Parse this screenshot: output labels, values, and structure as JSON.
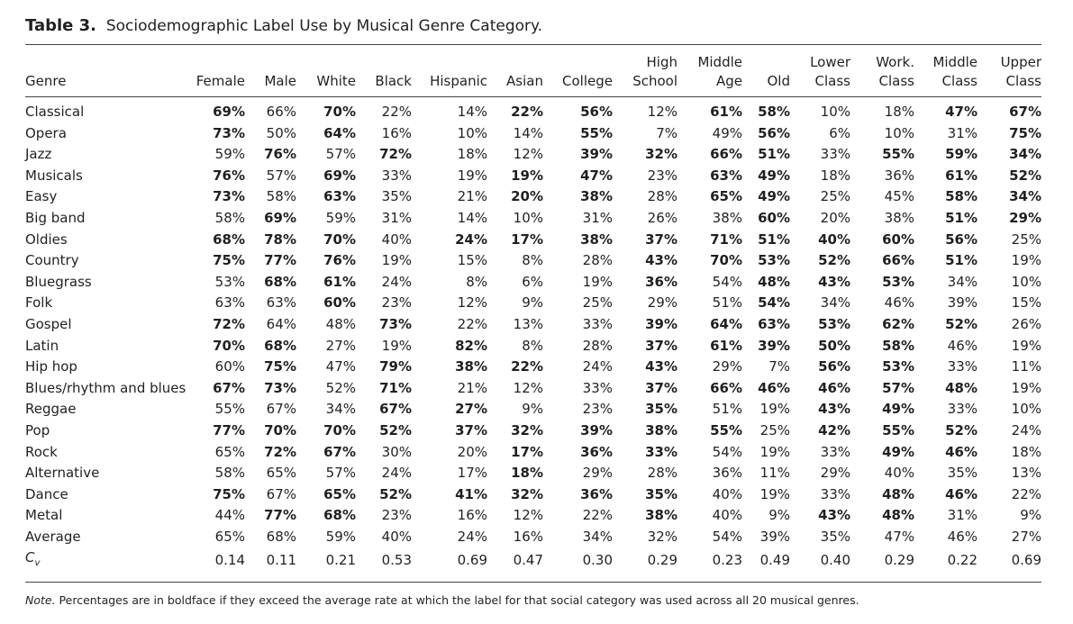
{
  "caption": {
    "label": "Table 3.",
    "title": "Sociodemographic Label Use by Musical Genre Category."
  },
  "columns": [
    {
      "line1": "",
      "line2": "Genre"
    },
    {
      "line1": "",
      "line2": "Female"
    },
    {
      "line1": "",
      "line2": "Male"
    },
    {
      "line1": "",
      "line2": "White"
    },
    {
      "line1": "",
      "line2": "Black"
    },
    {
      "line1": "",
      "line2": "Hispanic"
    },
    {
      "line1": "",
      "line2": "Asian"
    },
    {
      "line1": "",
      "line2": "College"
    },
    {
      "line1": "High",
      "line2": "School"
    },
    {
      "line1": "Middle",
      "line2": "Age"
    },
    {
      "line1": "",
      "line2": "Old"
    },
    {
      "line1": "Lower",
      "line2": "Class"
    },
    {
      "line1": "Work.",
      "line2": "Class"
    },
    {
      "line1": "Middle",
      "line2": "Class"
    },
    {
      "line1": "Upper",
      "line2": "Class"
    }
  ],
  "rows": [
    {
      "genre": "Classical",
      "values": [
        "69%",
        "66%",
        "70%",
        "22%",
        "14%",
        "22%",
        "56%",
        "12%",
        "61%",
        "58%",
        "10%",
        "18%",
        "47%",
        "67%"
      ],
      "bold": [
        1,
        0,
        1,
        0,
        0,
        1,
        1,
        0,
        1,
        1,
        0,
        0,
        1,
        1
      ]
    },
    {
      "genre": "Opera",
      "values": [
        "73%",
        "50%",
        "64%",
        "16%",
        "10%",
        "14%",
        "55%",
        "7%",
        "49%",
        "56%",
        "6%",
        "10%",
        "31%",
        "75%"
      ],
      "bold": [
        1,
        0,
        1,
        0,
        0,
        0,
        1,
        0,
        0,
        1,
        0,
        0,
        0,
        1
      ]
    },
    {
      "genre": "Jazz",
      "values": [
        "59%",
        "76%",
        "57%",
        "72%",
        "18%",
        "12%",
        "39%",
        "32%",
        "66%",
        "51%",
        "33%",
        "55%",
        "59%",
        "34%"
      ],
      "bold": [
        0,
        1,
        0,
        1,
        0,
        0,
        1,
        1,
        1,
        1,
        0,
        1,
        1,
        1
      ]
    },
    {
      "genre": "Musicals",
      "values": [
        "76%",
        "57%",
        "69%",
        "33%",
        "19%",
        "19%",
        "47%",
        "23%",
        "63%",
        "49%",
        "18%",
        "36%",
        "61%",
        "52%"
      ],
      "bold": [
        1,
        0,
        1,
        0,
        0,
        1,
        1,
        0,
        1,
        1,
        0,
        0,
        1,
        1
      ]
    },
    {
      "genre": "Easy",
      "values": [
        "73%",
        "58%",
        "63%",
        "35%",
        "21%",
        "20%",
        "38%",
        "28%",
        "65%",
        "49%",
        "25%",
        "45%",
        "58%",
        "34%"
      ],
      "bold": [
        1,
        0,
        1,
        0,
        0,
        1,
        1,
        0,
        1,
        1,
        0,
        0,
        1,
        1
      ]
    },
    {
      "genre": "Big band",
      "values": [
        "58%",
        "69%",
        "59%",
        "31%",
        "14%",
        "10%",
        "31%",
        "26%",
        "38%",
        "60%",
        "20%",
        "38%",
        "51%",
        "29%"
      ],
      "bold": [
        0,
        1,
        0,
        0,
        0,
        0,
        0,
        0,
        0,
        1,
        0,
        0,
        1,
        1
      ]
    },
    {
      "genre": "Oldies",
      "values": [
        "68%",
        "78%",
        "70%",
        "40%",
        "24%",
        "17%",
        "38%",
        "37%",
        "71%",
        "51%",
        "40%",
        "60%",
        "56%",
        "25%"
      ],
      "bold": [
        1,
        1,
        1,
        0,
        1,
        1,
        1,
        1,
        1,
        1,
        1,
        1,
        1,
        0
      ]
    },
    {
      "genre": "Country",
      "values": [
        "75%",
        "77%",
        "76%",
        "19%",
        "15%",
        "8%",
        "28%",
        "43%",
        "70%",
        "53%",
        "52%",
        "66%",
        "51%",
        "19%"
      ],
      "bold": [
        1,
        1,
        1,
        0,
        0,
        0,
        0,
        1,
        1,
        1,
        1,
        1,
        1,
        0
      ]
    },
    {
      "genre": "Bluegrass",
      "values": [
        "53%",
        "68%",
        "61%",
        "24%",
        "8%",
        "6%",
        "19%",
        "36%",
        "54%",
        "48%",
        "43%",
        "53%",
        "34%",
        "10%"
      ],
      "bold": [
        0,
        1,
        1,
        0,
        0,
        0,
        0,
        1,
        0,
        1,
        1,
        1,
        0,
        0
      ]
    },
    {
      "genre": "Folk",
      "values": [
        "63%",
        "63%",
        "60%",
        "23%",
        "12%",
        "9%",
        "25%",
        "29%",
        "51%",
        "54%",
        "34%",
        "46%",
        "39%",
        "15%"
      ],
      "bold": [
        0,
        0,
        1,
        0,
        0,
        0,
        0,
        0,
        0,
        1,
        0,
        0,
        0,
        0
      ]
    },
    {
      "genre": "Gospel",
      "values": [
        "72%",
        "64%",
        "48%",
        "73%",
        "22%",
        "13%",
        "33%",
        "39%",
        "64%",
        "63%",
        "53%",
        "62%",
        "52%",
        "26%"
      ],
      "bold": [
        1,
        0,
        0,
        1,
        0,
        0,
        0,
        1,
        1,
        1,
        1,
        1,
        1,
        0
      ]
    },
    {
      "genre": "Latin",
      "values": [
        "70%",
        "68%",
        "27%",
        "19%",
        "82%",
        "8%",
        "28%",
        "37%",
        "61%",
        "39%",
        "50%",
        "58%",
        "46%",
        "19%"
      ],
      "bold": [
        1,
        1,
        0,
        0,
        1,
        0,
        0,
        1,
        1,
        1,
        1,
        1,
        0,
        0
      ]
    },
    {
      "genre": "Hip hop",
      "values": [
        "60%",
        "75%",
        "47%",
        "79%",
        "38%",
        "22%",
        "24%",
        "43%",
        "29%",
        "7%",
        "56%",
        "53%",
        "33%",
        "11%"
      ],
      "bold": [
        0,
        1,
        0,
        1,
        1,
        1,
        0,
        1,
        0,
        0,
        1,
        1,
        0,
        0
      ]
    },
    {
      "genre": "Blues/rhythm and blues",
      "values": [
        "67%",
        "73%",
        "52%",
        "71%",
        "21%",
        "12%",
        "33%",
        "37%",
        "66%",
        "46%",
        "46%",
        "57%",
        "48%",
        "19%"
      ],
      "bold": [
        1,
        1,
        0,
        1,
        0,
        0,
        0,
        1,
        1,
        1,
        1,
        1,
        1,
        0
      ]
    },
    {
      "genre": "Reggae",
      "values": [
        "55%",
        "67%",
        "34%",
        "67%",
        "27%",
        "9%",
        "23%",
        "35%",
        "51%",
        "19%",
        "43%",
        "49%",
        "33%",
        "10%"
      ],
      "bold": [
        0,
        0,
        0,
        1,
        1,
        0,
        0,
        1,
        0,
        0,
        1,
        1,
        0,
        0
      ]
    },
    {
      "genre": "Pop",
      "values": [
        "77%",
        "70%",
        "70%",
        "52%",
        "37%",
        "32%",
        "39%",
        "38%",
        "55%",
        "25%",
        "42%",
        "55%",
        "52%",
        "24%"
      ],
      "bold": [
        1,
        1,
        1,
        1,
        1,
        1,
        1,
        1,
        1,
        0,
        1,
        1,
        1,
        0
      ]
    },
    {
      "genre": "Rock",
      "values": [
        "65%",
        "72%",
        "67%",
        "30%",
        "20%",
        "17%",
        "36%",
        "33%",
        "54%",
        "19%",
        "33%",
        "49%",
        "46%",
        "18%"
      ],
      "bold": [
        0,
        1,
        1,
        0,
        0,
        1,
        1,
        1,
        0,
        0,
        0,
        1,
        1,
        0
      ]
    },
    {
      "genre": "Alternative",
      "values": [
        "58%",
        "65%",
        "57%",
        "24%",
        "17%",
        "18%",
        "29%",
        "28%",
        "36%",
        "11%",
        "29%",
        "40%",
        "35%",
        "13%"
      ],
      "bold": [
        0,
        0,
        0,
        0,
        0,
        1,
        0,
        0,
        0,
        0,
        0,
        0,
        0,
        0
      ]
    },
    {
      "genre": "Dance",
      "values": [
        "75%",
        "67%",
        "65%",
        "52%",
        "41%",
        "32%",
        "36%",
        "35%",
        "40%",
        "19%",
        "33%",
        "48%",
        "46%",
        "22%"
      ],
      "bold": [
        1,
        0,
        1,
        1,
        1,
        1,
        1,
        1,
        0,
        0,
        0,
        1,
        1,
        0
      ]
    },
    {
      "genre": "Metal",
      "values": [
        "44%",
        "77%",
        "68%",
        "23%",
        "16%",
        "12%",
        "22%",
        "38%",
        "40%",
        "9%",
        "43%",
        "48%",
        "31%",
        "9%"
      ],
      "bold": [
        0,
        1,
        1,
        0,
        0,
        0,
        0,
        1,
        0,
        0,
        1,
        1,
        0,
        0
      ]
    },
    {
      "genre": "Average",
      "values": [
        "65%",
        "68%",
        "59%",
        "40%",
        "24%",
        "16%",
        "34%",
        "32%",
        "54%",
        "39%",
        "35%",
        "47%",
        "46%",
        "27%"
      ],
      "bold": [
        0,
        0,
        0,
        0,
        0,
        0,
        0,
        0,
        0,
        0,
        0,
        0,
        0,
        0
      ]
    }
  ],
  "cv_row": {
    "symbol": "C",
    "subscript": "v",
    "values": [
      "0.14",
      "0.11",
      "0.21",
      "0.53",
      "0.69",
      "0.47",
      "0.30",
      "0.29",
      "0.23",
      "0.49",
      "0.40",
      "0.29",
      "0.22",
      "0.69"
    ]
  },
  "note": {
    "label": "Note.",
    "text": " Percentages are in boldface if they exceed the average rate at which the label for that social category was used across all 20 musical genres."
  }
}
